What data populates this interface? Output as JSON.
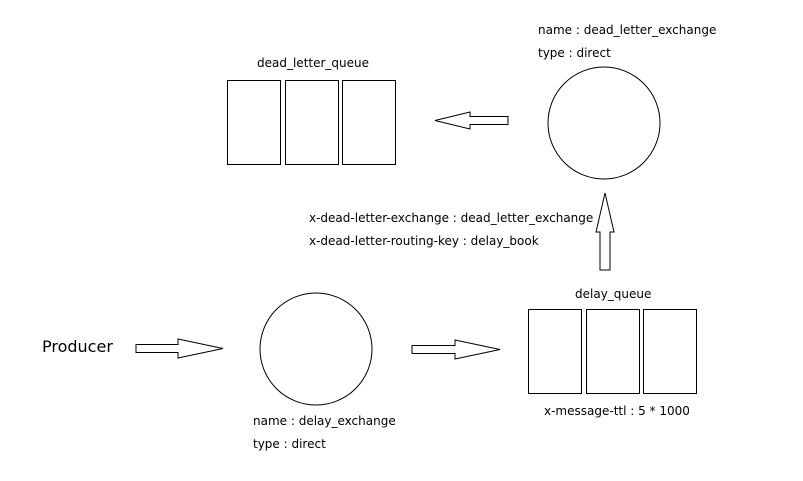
{
  "producer": {
    "label": "Producer"
  },
  "delay_exchange": {
    "name": "name : delay_exchange",
    "type": "type : direct"
  },
  "delay_queue": {
    "title": "delay_queue",
    "ttl": "x-message-ttl : 5 * 1000"
  },
  "dead_letter_exchange": {
    "name": "name : dead_letter_exchange",
    "type": "type : direct"
  },
  "dead_letter_queue": {
    "title": "dead_letter_queue"
  },
  "dead_letter_args": {
    "exchange": "x-dead-letter-exchange : dead_letter_exchange",
    "routing_key": "x-dead-letter-routing-key : delay_book"
  }
}
